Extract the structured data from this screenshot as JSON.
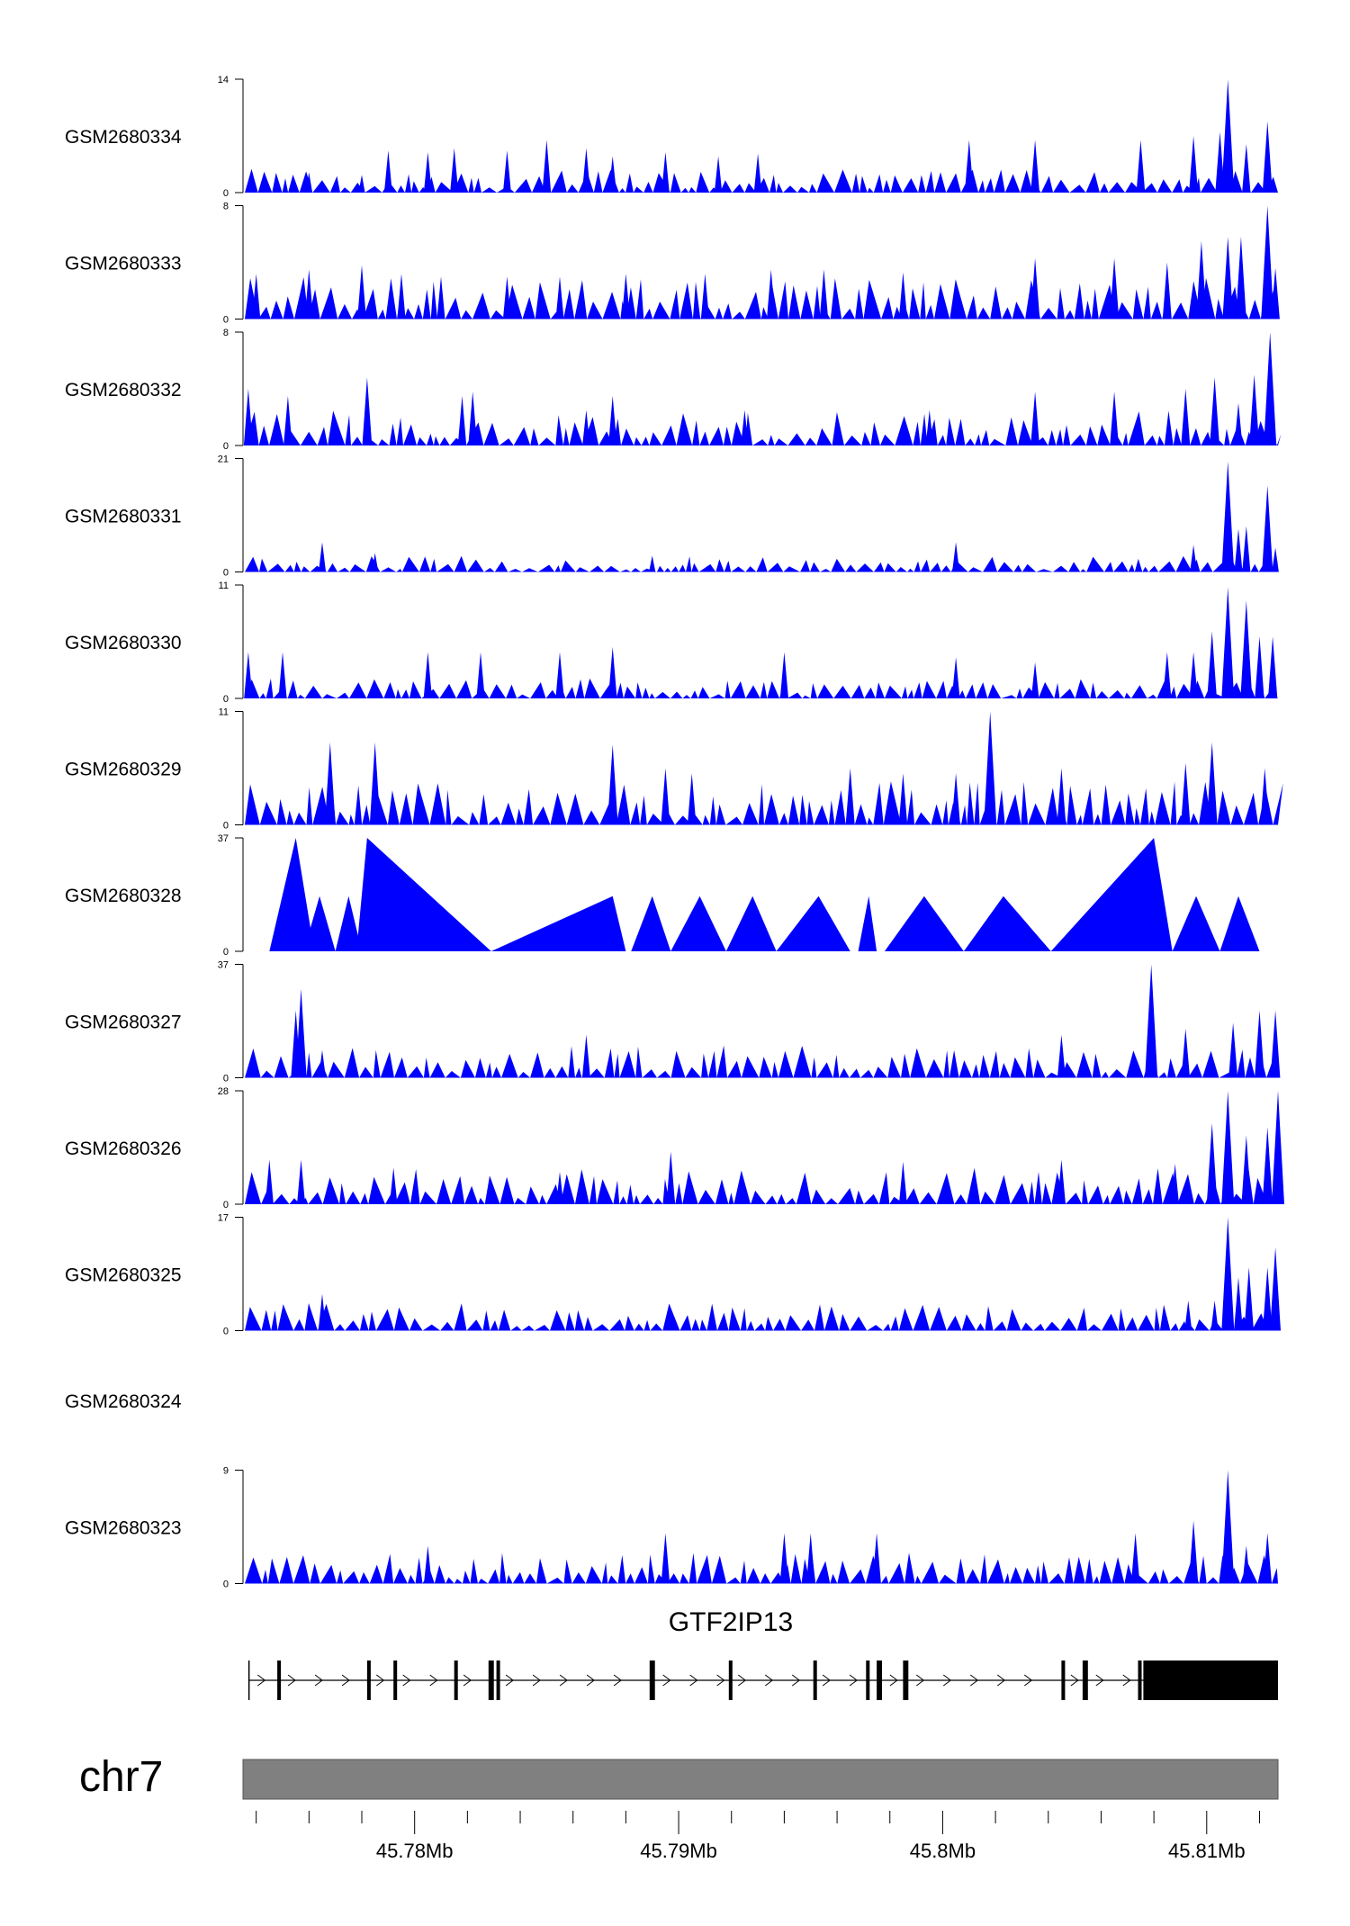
{
  "colors": {
    "track_fill": "#0000ff",
    "axis": "#000000",
    "gene": "#000000",
    "ideogram": "#808080"
  },
  "chart_data": {
    "type": "area",
    "title": "",
    "genome": {
      "chromosome": "chr7",
      "xlim": [
        45.7735,
        45.8127
      ],
      "unit": "Mb"
    },
    "x_ticks": [
      {
        "value": 45.78,
        "label": "45.78Mb"
      },
      {
        "value": 45.79,
        "label": "45.79Mb"
      },
      {
        "value": 45.8,
        "label": "45.8Mb"
      },
      {
        "value": 45.81,
        "label": "45.81Mb"
      }
    ],
    "minor_ticks": [
      45.774,
      45.776,
      45.778,
      45.782,
      45.784,
      45.786,
      45.788,
      45.792,
      45.794,
      45.796,
      45.798,
      45.802,
      45.804,
      45.806,
      45.808,
      45.812
    ],
    "series": [
      {
        "name": "GSM2680334",
        "ylim": [
          0,
          14
        ],
        "ymax_label": "14",
        "ymin_label": "0",
        "peaks": [
          [
            45.776,
            2.5
          ],
          [
            45.778,
            2.2
          ],
          [
            45.779,
            5.2
          ],
          [
            45.7805,
            5.0
          ],
          [
            45.7815,
            5.5
          ],
          [
            45.7835,
            5.2
          ],
          [
            45.785,
            6.5
          ],
          [
            45.7865,
            5.5
          ],
          [
            45.7875,
            4.5
          ],
          [
            45.7895,
            5.0
          ],
          [
            45.7915,
            4.5
          ],
          [
            45.793,
            4.8
          ],
          [
            45.801,
            6.5
          ],
          [
            45.8035,
            6.5
          ],
          [
            45.8075,
            6.5
          ],
          [
            45.8095,
            7.0
          ],
          [
            45.8105,
            7.5
          ],
          [
            45.8108,
            14.0
          ],
          [
            45.8115,
            6.0
          ],
          [
            45.8123,
            8.8
          ]
        ],
        "baseline": 1.8
      },
      {
        "name": "GSM2680333",
        "ylim": [
          0,
          8
        ],
        "ymax_label": "8",
        "ymin_label": "0",
        "peaks": [
          [
            45.774,
            3.2
          ],
          [
            45.776,
            3.5
          ],
          [
            45.778,
            3.8
          ],
          [
            45.7795,
            3.2
          ],
          [
            45.781,
            3.0
          ],
          [
            45.7835,
            3.0
          ],
          [
            45.7855,
            3.0
          ],
          [
            45.788,
            3.2
          ],
          [
            45.791,
            3.2
          ],
          [
            45.7935,
            3.5
          ],
          [
            45.7955,
            3.5
          ],
          [
            45.7985,
            3.3
          ],
          [
            45.8035,
            4.3
          ],
          [
            45.8065,
            4.3
          ],
          [
            45.8085,
            4.0
          ],
          [
            45.8098,
            5.5
          ],
          [
            45.8108,
            5.8
          ],
          [
            45.8113,
            5.8
          ],
          [
            45.8123,
            8.0
          ],
          [
            45.8126,
            3.6
          ]
        ],
        "baseline": 1.8
      },
      {
        "name": "GSM2680332",
        "ylim": [
          0,
          8
        ],
        "ymax_label": "8",
        "ymin_label": "0",
        "peaks": [
          [
            45.7737,
            4.0
          ],
          [
            45.7752,
            3.5
          ],
          [
            45.7782,
            4.8
          ],
          [
            45.7818,
            3.5
          ],
          [
            45.7822,
            3.8
          ],
          [
            45.7865,
            2.5
          ],
          [
            45.7875,
            3.5
          ],
          [
            45.7925,
            2.5
          ],
          [
            45.7995,
            2.5
          ],
          [
            45.8035,
            3.8
          ],
          [
            45.8065,
            3.8
          ],
          [
            45.8092,
            4.0
          ],
          [
            45.8103,
            4.8
          ],
          [
            45.8112,
            3.0
          ],
          [
            45.8118,
            5.0
          ],
          [
            45.8124,
            8.0
          ]
        ],
        "baseline": 1.5
      },
      {
        "name": "GSM2680331",
        "ylim": [
          0,
          21
        ],
        "ymax_label": "21",
        "ymin_label": "0",
        "peaks": [
          [
            45.7765,
            5.5
          ],
          [
            45.7785,
            3.5
          ],
          [
            45.789,
            3.0
          ],
          [
            45.8005,
            5.5
          ],
          [
            45.8095,
            5.0
          ],
          [
            45.8108,
            20.5
          ],
          [
            45.8112,
            8.0
          ],
          [
            45.8115,
            8.5
          ],
          [
            45.8123,
            16.0
          ],
          [
            45.8126,
            4.5
          ]
        ],
        "baseline": 1.8
      },
      {
        "name": "GSM2680330",
        "ylim": [
          0,
          11
        ],
        "ymax_label": "11",
        "ymin_label": "0",
        "peaks": [
          [
            45.7737,
            4.5
          ],
          [
            45.775,
            4.5
          ],
          [
            45.7805,
            4.5
          ],
          [
            45.7825,
            4.5
          ],
          [
            45.7855,
            4.5
          ],
          [
            45.7875,
            5.0
          ],
          [
            45.794,
            4.5
          ],
          [
            45.8005,
            4.0
          ],
          [
            45.8035,
            3.5
          ],
          [
            45.8085,
            4.5
          ],
          [
            45.8095,
            4.5
          ],
          [
            45.8102,
            6.5
          ],
          [
            45.8108,
            10.8
          ],
          [
            45.8115,
            9.5
          ],
          [
            45.812,
            6.0
          ],
          [
            45.8125,
            6.0
          ]
        ],
        "baseline": 1.2
      },
      {
        "name": "GSM2680329",
        "ylim": [
          0,
          11
        ],
        "ymax_label": "11",
        "ymin_label": "0",
        "peaks": [
          [
            45.7768,
            8.0
          ],
          [
            45.7785,
            8.0
          ],
          [
            45.7875,
            7.8
          ],
          [
            45.7895,
            5.5
          ],
          [
            45.7905,
            5.0
          ],
          [
            45.7965,
            5.5
          ],
          [
            45.7985,
            5.0
          ],
          [
            45.8005,
            5.0
          ],
          [
            45.8018,
            11.0
          ],
          [
            45.8045,
            5.5
          ],
          [
            45.8092,
            6.0
          ],
          [
            45.8102,
            8.0
          ],
          [
            45.8122,
            5.5
          ]
        ],
        "baseline": 2.6
      },
      {
        "name": "GSM2680328",
        "ylim": [
          0,
          37
        ],
        "ymax_label": "37",
        "ymin_label": "0",
        "triangles": [
          [
            45.7745,
            45.7755,
            45.7762,
            37
          ],
          [
            45.7758,
            45.7764,
            45.777,
            18
          ],
          [
            45.777,
            45.7775,
            45.778,
            18
          ],
          [
            45.7778,
            45.7782,
            45.7829,
            37
          ],
          [
            45.7829,
            45.7875,
            45.788,
            18
          ],
          [
            45.7882,
            45.789,
            45.7897,
            18
          ],
          [
            45.7897,
            45.7908,
            45.7918,
            18
          ],
          [
            45.7918,
            45.7928,
            45.7937,
            18
          ],
          [
            45.7937,
            45.7953,
            45.7965,
            18
          ],
          [
            45.7968,
            45.7972,
            45.7975,
            18
          ],
          [
            45.7978,
            45.7993,
            45.8008,
            18
          ],
          [
            45.8008,
            45.8023,
            45.8041,
            18
          ],
          [
            45.8041,
            45.808,
            45.8087,
            37
          ],
          [
            45.8087,
            45.8096,
            45.8105,
            18
          ],
          [
            45.8105,
            45.8112,
            45.812,
            18
          ]
        ]
      },
      {
        "name": "GSM2680327",
        "ylim": [
          0,
          37
        ],
        "ymax_label": "37",
        "ymin_label": "0",
        "peaks": [
          [
            45.7755,
            22.0
          ],
          [
            45.7757,
            29.0
          ],
          [
            45.7765,
            9.0
          ],
          [
            45.7865,
            14.0
          ],
          [
            45.8045,
            14.0
          ],
          [
            45.8079,
            37.0
          ],
          [
            45.8092,
            16.0
          ],
          [
            45.811,
            18.0
          ],
          [
            45.812,
            22.0
          ],
          [
            45.8126,
            22.0
          ]
        ],
        "baseline": 6.5
      },
      {
        "name": "GSM2680326",
        "ylim": [
          0,
          28
        ],
        "ymax_label": "28",
        "ymin_label": "0",
        "peaks": [
          [
            45.7745,
            11.0
          ],
          [
            45.7757,
            11.0
          ],
          [
            45.7792,
            9.0
          ],
          [
            45.7855,
            8.0
          ],
          [
            45.7897,
            13.0
          ],
          [
            45.7985,
            10.5
          ],
          [
            45.8045,
            11.0
          ],
          [
            45.8088,
            10.0
          ],
          [
            45.8102,
            20.0
          ],
          [
            45.8108,
            28.0
          ],
          [
            45.8115,
            17.0
          ],
          [
            45.8123,
            19.0
          ],
          [
            45.8127,
            28.0
          ]
        ],
        "baseline": 5.5
      },
      {
        "name": "GSM2680325",
        "ylim": [
          0,
          17
        ],
        "ymax_label": "17",
        "ymin_label": "0",
        "peaks": [
          [
            45.7765,
            5.5
          ],
          [
            45.8093,
            4.5
          ],
          [
            45.8103,
            4.5
          ],
          [
            45.8108,
            17.0
          ],
          [
            45.8112,
            8.0
          ],
          [
            45.8116,
            9.5
          ],
          [
            45.8123,
            9.5
          ],
          [
            45.8126,
            12.5
          ]
        ],
        "baseline": 2.5
      },
      {
        "name": "GSM2680324",
        "ylim": null,
        "ymax_label": "",
        "ymin_label": "",
        "empty": true
      },
      {
        "name": "GSM2680323",
        "ylim": [
          0,
          9
        ],
        "ymax_label": "9",
        "ymin_label": "0",
        "peaks": [
          [
            45.7805,
            3.0
          ],
          [
            45.7895,
            4.0
          ],
          [
            45.794,
            4.0
          ],
          [
            45.795,
            4.0
          ],
          [
            45.7975,
            4.0
          ],
          [
            45.8073,
            4.0
          ],
          [
            45.8095,
            5.0
          ],
          [
            45.8108,
            9.0
          ],
          [
            45.8115,
            3.0
          ],
          [
            45.8123,
            4.0
          ]
        ],
        "baseline": 1.5
      }
    ],
    "gene": {
      "name": "GTF2IP13",
      "strand": "+",
      "exons": [
        [
          45.7737,
          45.77375
        ],
        [
          45.7748,
          45.7749
        ],
        [
          45.7782,
          45.77825
        ],
        [
          45.7792,
          45.77925
        ],
        [
          45.7815,
          45.78155
        ],
        [
          45.7828,
          45.783
        ],
        [
          45.7831,
          45.78315
        ],
        [
          45.7889,
          45.7891
        ],
        [
          45.7919,
          45.79195
        ],
        [
          45.7951,
          45.79515
        ],
        [
          45.7971,
          45.79715
        ],
        [
          45.7975,
          45.7977
        ],
        [
          45.7985,
          45.7987
        ],
        [
          45.8045,
          45.80455
        ],
        [
          45.8053,
          45.8055
        ],
        [
          45.8074,
          45.80745
        ],
        [
          45.8076,
          45.8127
        ]
      ]
    }
  }
}
